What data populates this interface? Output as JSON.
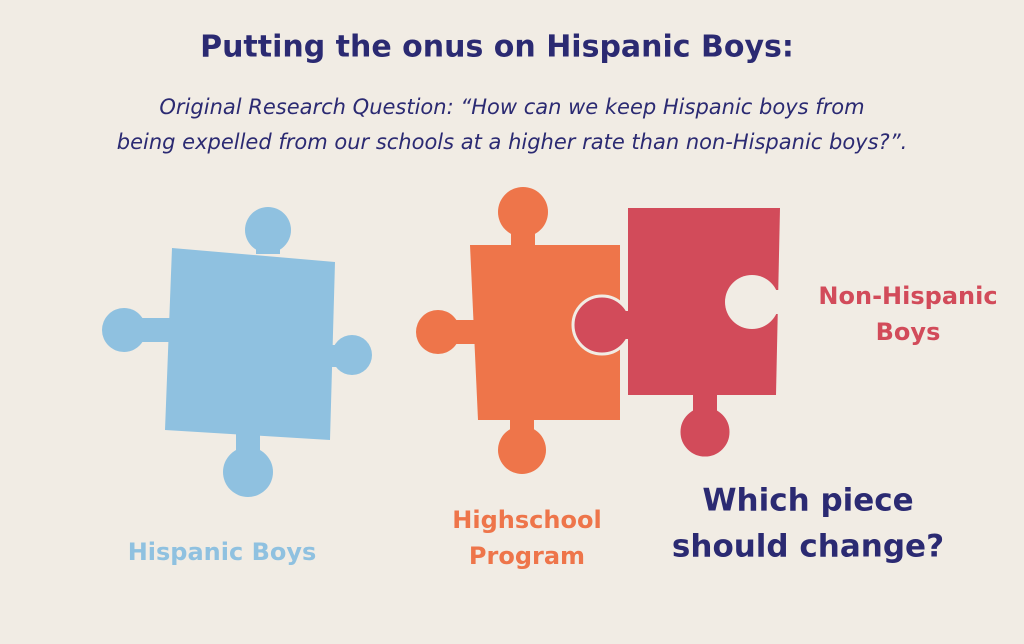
{
  "header": {
    "title": "Putting the onus on Hispanic Boys:",
    "subtitle_lines": [
      "Original Research Question: “How can we keep Hispanic boys from",
      "being expelled from our schools at a higher rate than non-Hispanic boys?”."
    ]
  },
  "pieces": [
    {
      "label_lines": [
        "Hispanic Boys"
      ]
    },
    {
      "label_lines": [
        "Highschool",
        "Program"
      ]
    },
    {
      "label_lines": [
        "Non-Hispanic",
        "Boys"
      ]
    }
  ],
  "question_lines": [
    "Which piece",
    "should change?"
  ]
}
